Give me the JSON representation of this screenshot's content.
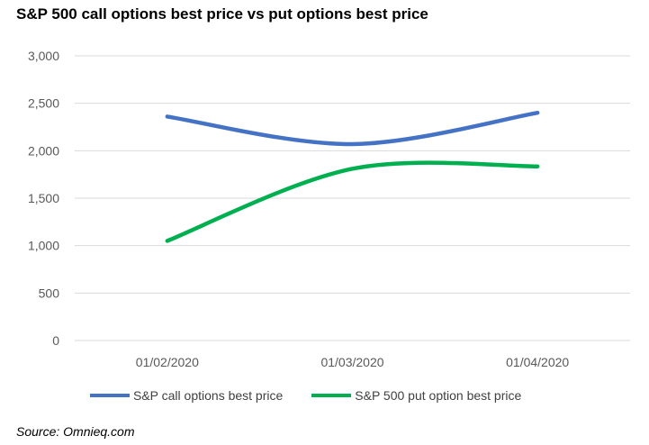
{
  "colors": {
    "call": "#4472C4",
    "put": "#00B050",
    "gridline": "#D9D9D9",
    "tick_text": "#595959"
  },
  "source": "Source: Omnieq.com",
  "chart_data": {
    "type": "line",
    "title": "S&P 500 call options best price vs put options best price",
    "xlabel": "",
    "ylabel": "",
    "categories": [
      "01/02/2020",
      "01/03/2020",
      "01/04/2020"
    ],
    "ylim": [
      0,
      3000
    ],
    "yticks": [
      0,
      500,
      1000,
      1500,
      2000,
      2500,
      3000
    ],
    "ytick_labels": [
      "0",
      "500",
      "1,000",
      "1,500",
      "2,000",
      "2,500",
      "3,000"
    ],
    "grid": true,
    "smooth": true,
    "legend_position": "bottom",
    "series": [
      {
        "name": "S&P call options best price",
        "color": "#4472C4",
        "values": [
          2360,
          2070,
          2400
        ]
      },
      {
        "name": "S&P 500 put option best price",
        "color": "#00B050",
        "values": [
          1050,
          1810,
          1835
        ]
      }
    ]
  }
}
